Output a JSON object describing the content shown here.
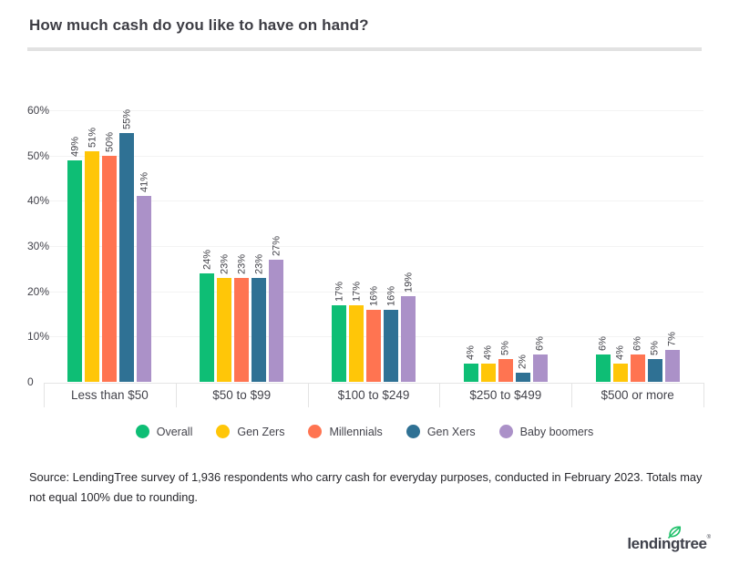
{
  "title": "How much cash do you like to have on hand?",
  "chart_data": {
    "type": "bar",
    "title": "How much cash do you like to have on hand?",
    "categories": [
      "Less than $50",
      "$50 to $99",
      "$100 to $249",
      "$250 to $499",
      "$500 or more"
    ],
    "series": [
      {
        "name": "Overall",
        "color": "#0ebe75",
        "values": [
          49,
          24,
          17,
          4,
          6
        ]
      },
      {
        "name": "Gen Zers",
        "color": "#ffc608",
        "values": [
          51,
          23,
          17,
          4,
          4
        ]
      },
      {
        "name": "Millennials",
        "color": "#ff7451",
        "values": [
          50,
          23,
          16,
          5,
          6
        ]
      },
      {
        "name": "Gen Xers",
        "color": "#2f7194",
        "values": [
          55,
          23,
          16,
          2,
          5
        ]
      },
      {
        "name": "Baby boomers",
        "color": "#ab91c8",
        "values": [
          41,
          27,
          19,
          6,
          7
        ]
      }
    ],
    "value_label_format": "{v}%",
    "xlabel": "",
    "ylabel": "",
    "ylim": [
      0,
      60
    ],
    "y_tick_values": [
      0,
      10,
      20,
      30,
      40,
      50,
      60
    ],
    "y_tick_labels": [
      "0",
      "10%",
      "20%",
      "30%",
      "40%",
      "50%",
      "60%"
    ],
    "grid": true,
    "legend_position": "bottom"
  },
  "source": {
    "line1": "Source: LendingTree survey of 1,936 respondents who carry cash for everyday purposes, conducted in February 2023. Totals may",
    "line2": "not equal 100% due to rounding."
  },
  "logo": {
    "text": "lendingtree",
    "trademark": "®",
    "leaf_color": "#21c16b"
  }
}
